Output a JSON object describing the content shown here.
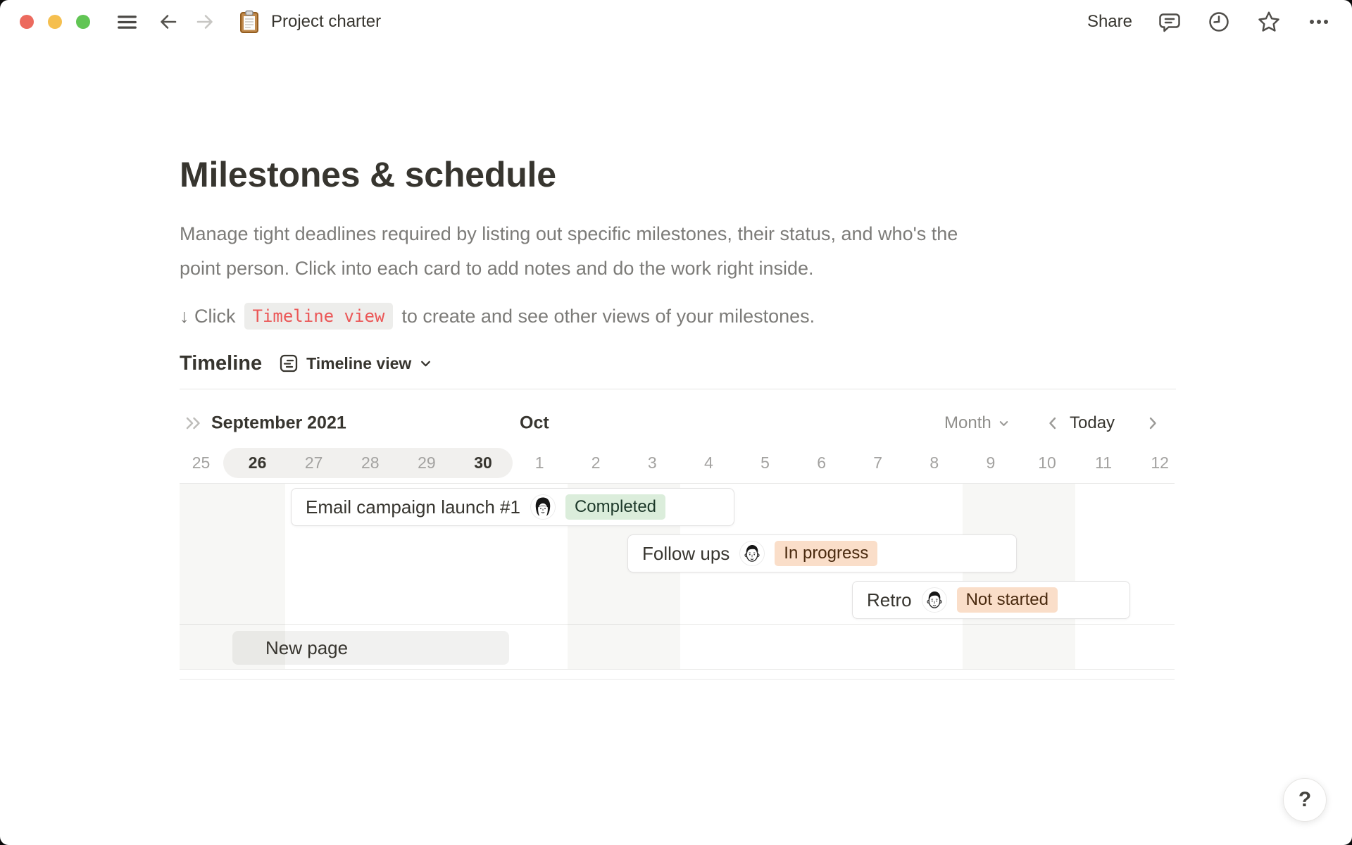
{
  "window": {
    "title": "Project charter",
    "traffic_lights": [
      "#EC6A5E",
      "#F5BF4F",
      "#61C554"
    ]
  },
  "titlebar": {
    "share_label": "Share",
    "icons": [
      "menu-icon",
      "back-icon",
      "forward-icon",
      "clipboard-page-icon",
      "comment-icon",
      "history-clock-icon",
      "star-icon",
      "more-ellipsis-icon"
    ]
  },
  "page": {
    "title": "Milestones & schedule",
    "description": "Manage tight deadlines required by listing out specific milestones, their status, and who's the\npoint person. Click into each card to add notes and do the work right inside.",
    "hint_prefix": "↓ Click",
    "hint_code": "Timeline view",
    "hint_suffix": "to create and see other views of your milestones.",
    "hint_code_color": "#EB5757"
  },
  "section": {
    "title": "Timeline",
    "view_label": "Timeline view"
  },
  "timeline": {
    "month_left": "September 2021",
    "month_right": "Oct",
    "scale_label": "Month",
    "today_label": "Today",
    "selected_range": "Sep 26 – Sep 30",
    "days": [
      {
        "label": "25",
        "style": "muted"
      },
      {
        "label": "26",
        "style": "strong"
      },
      {
        "label": "27",
        "style": "muted"
      },
      {
        "label": "28",
        "style": "muted"
      },
      {
        "label": "29",
        "style": "muted"
      },
      {
        "label": "30",
        "style": "strong"
      },
      {
        "label": "1",
        "style": "muted"
      },
      {
        "label": "2",
        "style": "muted"
      },
      {
        "label": "3",
        "style": "muted"
      },
      {
        "label": "4",
        "style": "muted"
      },
      {
        "label": "5",
        "style": "muted"
      },
      {
        "label": "6",
        "style": "muted"
      },
      {
        "label": "7",
        "style": "muted"
      },
      {
        "label": "8",
        "style": "muted"
      },
      {
        "label": "9",
        "style": "muted"
      },
      {
        "label": "10",
        "style": "muted"
      },
      {
        "label": "11",
        "style": "muted"
      },
      {
        "label": "12",
        "style": "muted"
      }
    ],
    "weekend_stripe_color": "#f7f7f5",
    "cards": [
      {
        "title": "Email campaign launch #1",
        "status": "Completed",
        "status_bg": "#DBEDDB",
        "status_text": "#1C3829",
        "avatar": "woman",
        "range": "Sep 27 – Oct 4"
      },
      {
        "title": "Follow ups",
        "status": "In progress",
        "status_bg": "#FADEC9",
        "status_text": "#49290E",
        "avatar": "man",
        "range": "Oct 3 – Oct 9"
      },
      {
        "title": "Retro",
        "status": "Not started",
        "status_bg": "#FADEC9",
        "status_text": "#49290E",
        "avatar": "man",
        "range": "Oct 7 – Oct 11"
      }
    ],
    "new_page_label": "New page"
  },
  "help": {
    "label": "?"
  }
}
